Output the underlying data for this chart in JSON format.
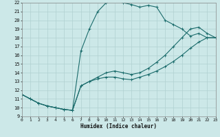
{
  "xlabel": "Humidex (Indice chaleur)",
  "xlim": [
    0,
    23
  ],
  "ylim": [
    9,
    22
  ],
  "xticks": [
    0,
    1,
    2,
    3,
    4,
    5,
    6,
    7,
    8,
    9,
    10,
    11,
    12,
    13,
    14,
    15,
    16,
    17,
    18,
    19,
    20,
    21,
    22,
    23
  ],
  "yticks": [
    9,
    10,
    11,
    12,
    13,
    14,
    15,
    16,
    17,
    18,
    19,
    20,
    21,
    22
  ],
  "bg_color": "#cce8e8",
  "grid_color": "#b0d0d0",
  "line_color": "#1a6b6b",
  "line1_y": [
    11.5,
    11.0,
    10.5,
    10.2,
    10.0,
    9.8,
    9.7,
    12.5,
    13.0,
    13.3,
    13.5,
    13.5,
    13.3,
    13.2,
    13.5,
    13.8,
    14.2,
    14.7,
    15.3,
    16.0,
    16.8,
    17.5,
    18.0,
    18.0
  ],
  "line2_y": [
    11.5,
    11.0,
    10.5,
    10.2,
    10.0,
    9.8,
    9.7,
    12.5,
    13.0,
    13.5,
    14.0,
    14.2,
    14.0,
    13.8,
    14.0,
    14.5,
    15.2,
    16.0,
    17.0,
    18.0,
    19.0,
    19.2,
    18.5,
    18.0
  ],
  "line3_y": [
    11.5,
    11.0,
    10.5,
    10.2,
    10.0,
    9.8,
    9.7,
    16.5,
    19.0,
    21.0,
    22.0,
    22.2,
    22.0,
    21.8,
    21.5,
    21.7,
    21.5,
    20.0,
    19.5,
    19.0,
    18.2,
    18.5,
    18.0,
    18.0
  ]
}
